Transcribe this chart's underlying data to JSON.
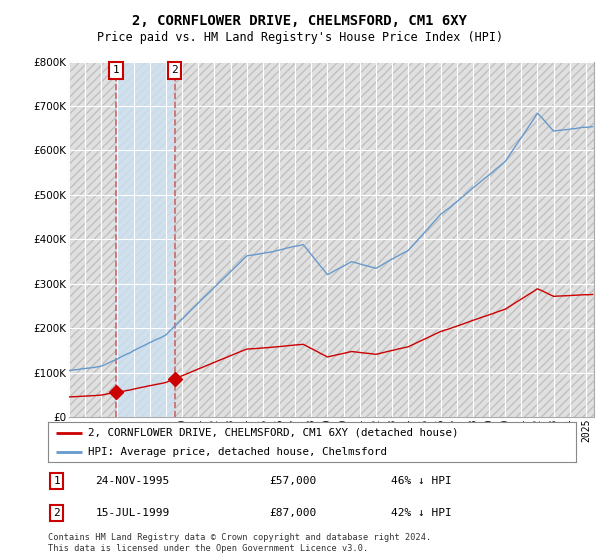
{
  "title": "2, CORNFLOWER DRIVE, CHELMSFORD, CM1 6XY",
  "subtitle": "Price paid vs. HM Land Registry's House Price Index (HPI)",
  "property_label": "2, CORNFLOWER DRIVE, CHELMSFORD, CM1 6XY (detached house)",
  "hpi_label": "HPI: Average price, detached house, Chelmsford",
  "transaction1": {
    "date": "24-NOV-1995",
    "price": 57000,
    "pct": "46% ↓ HPI",
    "label": "1"
  },
  "transaction2": {
    "date": "15-JUL-1999",
    "price": 87000,
    "pct": "42% ↓ HPI",
    "label": "2"
  },
  "footer": "Contains HM Land Registry data © Crown copyright and database right 2024.\nThis data is licensed under the Open Government Licence v3.0.",
  "property_color": "#cc0000",
  "hpi_color": "#6699cc",
  "vline_color": "#cc6666",
  "shade_color": "#cce0f0",
  "marker_color": "#cc0000",
  "ylim": [
    0,
    800000
  ],
  "yticks": [
    0,
    100000,
    200000,
    300000,
    400000,
    500000,
    600000,
    700000,
    800000
  ],
  "t1_year": 1995.917,
  "t1_price": 57000,
  "t2_year": 1999.542,
  "t2_price": 87000,
  "xmin": 1993.0,
  "xmax": 2025.5
}
